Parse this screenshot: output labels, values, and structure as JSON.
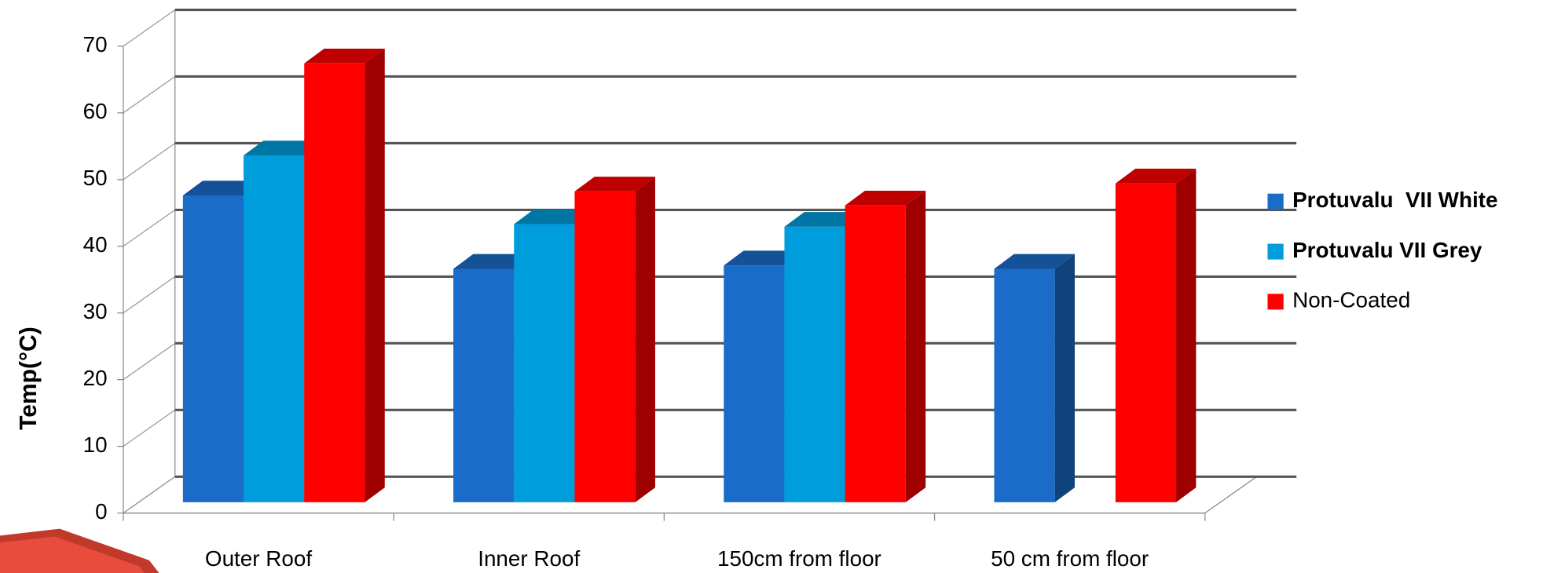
{
  "chart_data": {
    "type": "bar3d",
    "y_label": "Temp(°C)",
    "categories": [
      "Outer Roof",
      "Inner Roof",
      "150cm from floor",
      "50 cm from floor"
    ],
    "series": [
      {
        "name": "Protuvalu  VII White",
        "color": "#1a6cc8",
        "values": [
          46,
          35,
          35.5,
          35
        ]
      },
      {
        "name": "Protuvalu VII Grey",
        "color": "#009ddc",
        "values": [
          52,
          41.7,
          41.3,
          null
        ]
      },
      {
        "name": "Non-Coated",
        "color": "#ff0000",
        "values": [
          65.8,
          46.6,
          44.5,
          47.8
        ]
      }
    ],
    "ylim": [
      0,
      70
    ],
    "yticks": [
      0,
      10,
      20,
      30,
      40,
      50,
      60,
      70
    ],
    "grid": true,
    "legend": "right"
  }
}
